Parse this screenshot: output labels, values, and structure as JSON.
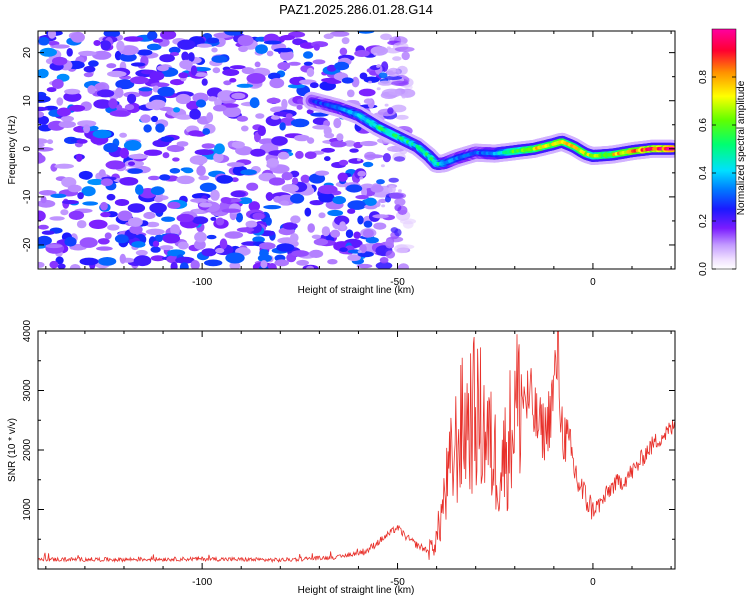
{
  "chart_data": [
    {
      "type": "heatmap",
      "title": "PAZ1.2025.286.01.28.G14",
      "xlabel": "Height of straight line (km)",
      "ylabel": "Frequency (Hz)",
      "xlim": [
        -142,
        21
      ],
      "ylim": [
        -25,
        24.5
      ],
      "x_ticks": [
        -100,
        -50,
        0
      ],
      "y_ticks": [
        -20,
        -10,
        0,
        10,
        20
      ],
      "x_tick_labels": [
        "-100",
        "-50",
        "0"
      ],
      "y_tick_labels": [
        "-20",
        "-10",
        "0",
        "10",
        "20"
      ],
      "colorbar": {
        "label": "Normalized spectral amplitude",
        "range": [
          0,
          1
        ],
        "ticks": [
          0.0,
          0.2,
          0.4,
          0.6,
          0.8
        ],
        "tick_labels": [
          "0.0",
          "0.2",
          "0.4",
          "0.6",
          "0.8"
        ],
        "colormap": "rainbow (white-violet-blue-cyan-green-yellow-red-magenta)"
      },
      "noise_region_x": [
        -142,
        -55
      ],
      "noise_level": [
        0.1,
        0.35
      ],
      "ridge": {
        "x": [
          -72,
          -65,
          -60,
          -55,
          -50,
          -45,
          -42,
          -40,
          -38,
          -35,
          -30,
          -25,
          -20,
          -15,
          -10,
          -8,
          -5,
          -2,
          0,
          5,
          10,
          15,
          21
        ],
        "freq": [
          10,
          8.5,
          7,
          4.5,
          2.5,
          0.5,
          -1.5,
          -3.2,
          -3,
          -2,
          -0.8,
          -1,
          -0.5,
          0,
          1,
          1.5,
          0.5,
          -1,
          -1.5,
          -1.2,
          -0.5,
          0,
          0
        ],
        "amplitude": [
          0.25,
          0.32,
          0.4,
          0.5,
          0.5,
          0.45,
          0.5,
          0.5,
          0.38,
          0.32,
          0.3,
          0.36,
          0.6,
          0.7,
          0.75,
          0.7,
          0.75,
          0.7,
          0.6,
          0.7,
          0.8,
          0.9,
          0.95
        ]
      }
    },
    {
      "type": "line",
      "title": "",
      "xlabel": "Height of straight line (km)",
      "ylabel": "SNR (10 * v/v)",
      "xlim": [
        -142,
        21
      ],
      "ylim": [
        0,
        4000
      ],
      "x_ticks": [
        -100,
        -50,
        0
      ],
      "y_ticks": [
        1000,
        2000,
        3000,
        4000
      ],
      "x_tick_labels": [
        "-100",
        "-50",
        "0"
      ],
      "y_tick_labels": [
        "1000",
        "2000",
        "3000",
        "4000"
      ],
      "color": "#e8302a",
      "series": [
        {
          "name": "SNR",
          "x": [
            -142,
            -120,
            -100,
            -80,
            -65,
            -58,
            -55,
            -52,
            -50,
            -48,
            -45,
            -42,
            -40,
            -38,
            -36,
            -34,
            -32,
            -30,
            -28,
            -26,
            -24,
            -22,
            -20,
            -18,
            -16,
            -14,
            -12,
            -10,
            -9,
            -8,
            -6,
            -4,
            -2,
            0,
            2,
            5,
            8,
            11,
            14,
            17,
            21
          ],
          "y": [
            160,
            160,
            170,
            150,
            200,
            300,
            450,
            600,
            700,
            550,
            400,
            300,
            500,
            1200,
            1800,
            2300,
            2500,
            2600,
            2400,
            2000,
            1700,
            2000,
            2700,
            2900,
            2800,
            2400,
            2300,
            3000,
            3700,
            2400,
            2000,
            1500,
            1200,
            1000,
            1100,
            1400,
            1500,
            1700,
            2000,
            2200,
            2400
          ]
        }
      ]
    }
  ]
}
